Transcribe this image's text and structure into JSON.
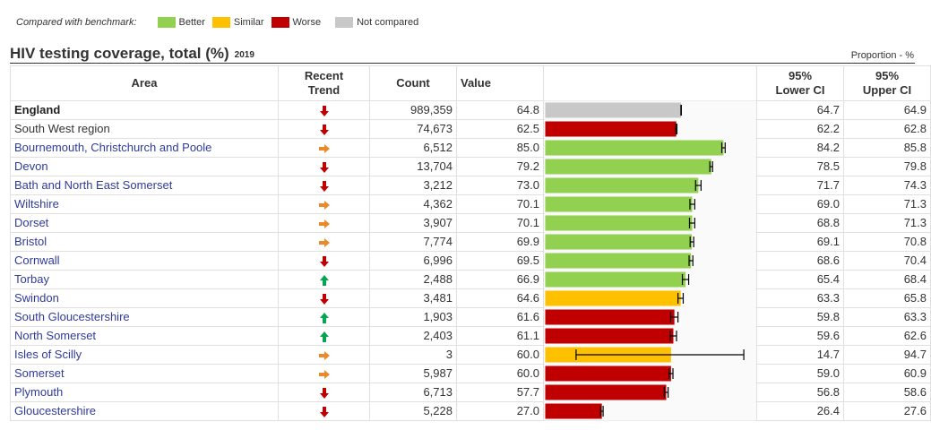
{
  "legend": {
    "label": "Compared with benchmark:",
    "items": [
      {
        "label": "Better",
        "color": "#92d050"
      },
      {
        "label": "Similar",
        "color": "#ffc000"
      },
      {
        "label": "Worse",
        "color": "#c00000"
      },
      {
        "label": "Not compared",
        "color": "#c8c8c8"
      }
    ]
  },
  "indicator": {
    "title": "HIV testing coverage, total (%)",
    "year": "2019",
    "unit": "Proportion - %"
  },
  "table": {
    "headers": {
      "area": "Area",
      "trend_line1": "Recent",
      "trend_line2": "Trend",
      "count": "Count",
      "value": "Value",
      "lci_line1": "95%",
      "lci_line2": "Lower CI",
      "uci_line1": "95%",
      "uci_line2": "Upper CI"
    }
  },
  "colors": {
    "better": "#92d050",
    "similar": "#ffc000",
    "worse": "#c00000",
    "not_compared": "#c8c8c8",
    "trend_down": "#c00000",
    "trend_right": "#ec8a2a",
    "trend_up": "#00a651"
  },
  "chart_data": {
    "type": "bar",
    "orientation": "horizontal",
    "xlim": [
      0,
      100
    ],
    "categories": [
      "England",
      "South West region",
      "Bournemouth, Christchurch and Poole",
      "Devon",
      "Bath and North East Somerset",
      "Wiltshire",
      "Dorset",
      "Bristol",
      "Cornwall",
      "Torbay",
      "Swindon",
      "South Gloucestershire",
      "North Somerset",
      "Isles of Scilly",
      "Somerset",
      "Plymouth",
      "Gloucestershire"
    ],
    "rows": [
      {
        "area": "England",
        "trend": "down",
        "count": "989,359",
        "value": "64.8",
        "v": 64.8,
        "lci": "64.7",
        "uci": "64.9",
        "l": 64.7,
        "u": 64.9,
        "status": "not_compared"
      },
      {
        "area": "South West region",
        "trend": "down",
        "count": "74,673",
        "value": "62.5",
        "v": 62.5,
        "lci": "62.2",
        "uci": "62.8",
        "l": 62.2,
        "u": 62.8,
        "status": "worse"
      },
      {
        "area": "Bournemouth, Christchurch and Poole",
        "trend": "right",
        "count": "6,512",
        "value": "85.0",
        "v": 85.0,
        "lci": "84.2",
        "uci": "85.8",
        "l": 84.2,
        "u": 85.8,
        "status": "better"
      },
      {
        "area": "Devon",
        "trend": "down",
        "count": "13,704",
        "value": "79.2",
        "v": 79.2,
        "lci": "78.5",
        "uci": "79.8",
        "l": 78.5,
        "u": 79.8,
        "status": "better"
      },
      {
        "area": "Bath and North East Somerset",
        "trend": "down",
        "count": "3,212",
        "value": "73.0",
        "v": 73.0,
        "lci": "71.7",
        "uci": "74.3",
        "l": 71.7,
        "u": 74.3,
        "status": "better"
      },
      {
        "area": "Wiltshire",
        "trend": "right",
        "count": "4,362",
        "value": "70.1",
        "v": 70.1,
        "lci": "69.0",
        "uci": "71.3",
        "l": 69.0,
        "u": 71.3,
        "status": "better"
      },
      {
        "area": "Dorset",
        "trend": "right",
        "count": "3,907",
        "value": "70.1",
        "v": 70.1,
        "lci": "68.8",
        "uci": "71.3",
        "l": 68.8,
        "u": 71.3,
        "status": "better"
      },
      {
        "area": "Bristol",
        "trend": "right",
        "count": "7,774",
        "value": "69.9",
        "v": 69.9,
        "lci": "69.1",
        "uci": "70.8",
        "l": 69.1,
        "u": 70.8,
        "status": "better"
      },
      {
        "area": "Cornwall",
        "trend": "down",
        "count": "6,996",
        "value": "69.5",
        "v": 69.5,
        "lci": "68.6",
        "uci": "70.4",
        "l": 68.6,
        "u": 70.4,
        "status": "better"
      },
      {
        "area": "Torbay",
        "trend": "up",
        "count": "2,488",
        "value": "66.9",
        "v": 66.9,
        "lci": "65.4",
        "uci": "68.4",
        "l": 65.4,
        "u": 68.4,
        "status": "better"
      },
      {
        "area": "Swindon",
        "trend": "down",
        "count": "3,481",
        "value": "64.6",
        "v": 64.6,
        "lci": "63.3",
        "uci": "65.8",
        "l": 63.3,
        "u": 65.8,
        "status": "similar"
      },
      {
        "area": "South Gloucestershire",
        "trend": "up",
        "count": "1,903",
        "value": "61.6",
        "v": 61.6,
        "lci": "59.8",
        "uci": "63.3",
        "l": 59.8,
        "u": 63.3,
        "status": "worse"
      },
      {
        "area": "North Somerset",
        "trend": "up",
        "count": "2,403",
        "value": "61.1",
        "v": 61.1,
        "lci": "59.6",
        "uci": "62.6",
        "l": 59.6,
        "u": 62.6,
        "status": "worse"
      },
      {
        "area": "Isles of Scilly",
        "trend": "right",
        "count": "3",
        "value": "60.0",
        "v": 60.0,
        "lci": "14.7",
        "uci": "94.7",
        "l": 14.7,
        "u": 94.7,
        "status": "similar"
      },
      {
        "area": "Somerset",
        "trend": "right",
        "count": "5,987",
        "value": "60.0",
        "v": 60.0,
        "lci": "59.0",
        "uci": "60.9",
        "l": 59.0,
        "u": 60.9,
        "status": "worse"
      },
      {
        "area": "Plymouth",
        "trend": "down",
        "count": "6,713",
        "value": "57.7",
        "v": 57.7,
        "lci": "56.8",
        "uci": "58.6",
        "l": 56.8,
        "u": 58.6,
        "status": "worse"
      },
      {
        "area": "Gloucestershire",
        "trend": "down",
        "count": "5,228",
        "value": "27.0",
        "v": 27.0,
        "lci": "26.4",
        "uci": "27.6",
        "l": 26.4,
        "u": 27.6,
        "status": "worse"
      }
    ]
  }
}
